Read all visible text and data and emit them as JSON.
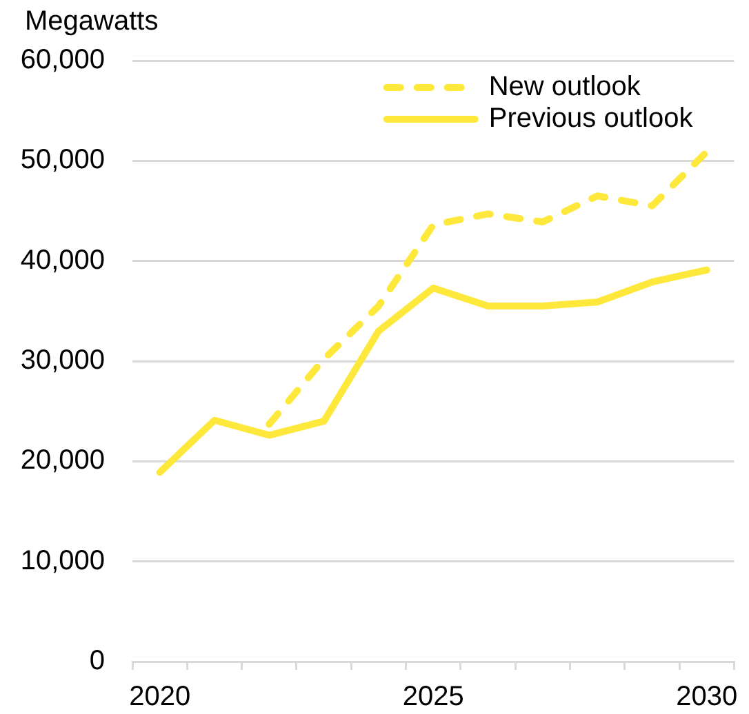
{
  "chart_data": {
    "type": "line",
    "ylabel": "Megawatts",
    "categories": [
      "2020",
      null,
      null,
      null,
      null,
      "2025",
      null,
      null,
      null,
      null,
      "2030"
    ],
    "series": [
      {
        "name": "New outlook",
        "color": "#ffe83c",
        "line_style": "dashed",
        "values": [
          null,
          null,
          23700,
          30200,
          35500,
          43600,
          44700,
          43900,
          46500,
          45500,
          50900
        ]
      },
      {
        "name": "Previous outlook",
        "color": "#ffe83c",
        "line_style": "solid",
        "values": [
          18900,
          24100,
          22600,
          24000,
          33000,
          37300,
          35500,
          35500,
          35900,
          37900,
          39100
        ]
      }
    ],
    "ylim": [
      0,
      60000
    ],
    "yticks": [
      0,
      {
        "value": 10000,
        "label": "10,000"
      },
      {
        "value": 20000,
        "label": "20,000"
      },
      {
        "value": 30000,
        "label": "30,000"
      },
      {
        "value": 40000,
        "label": "40,000"
      },
      {
        "value": 50000,
        "label": "50,000"
      },
      {
        "value": 60000,
        "label": "60,000"
      }
    ],
    "grid": "y",
    "legend": "top right",
    "marker": "none"
  }
}
